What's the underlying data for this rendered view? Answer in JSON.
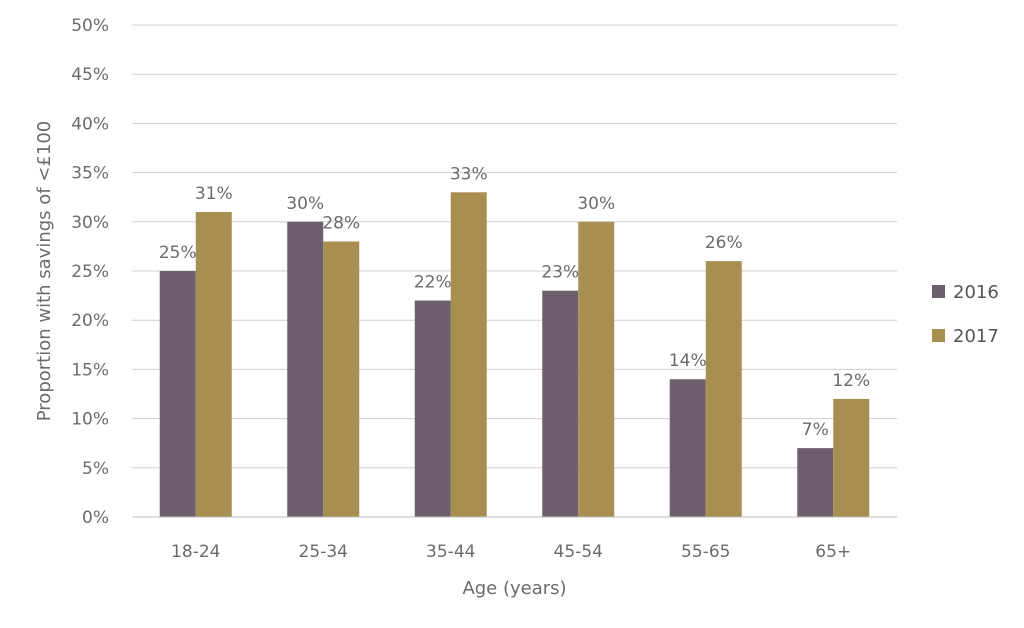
{
  "chart_data": {
    "type": "bar",
    "title": "",
    "xlabel": "Age (years)",
    "ylabel": "Proportion with savings of <£100",
    "categories": [
      "18-24",
      "25-34",
      "35-44",
      "45-54",
      "55-65",
      "65+"
    ],
    "series": [
      {
        "name": "2016",
        "color": "#6e5f6c",
        "values": [
          25,
          30,
          22,
          23,
          14,
          7
        ],
        "labels": [
          "25%",
          "30%",
          "22%",
          "23%",
          "14%",
          "7%"
        ]
      },
      {
        "name": "2017",
        "color": "#a98e52",
        "values": [
          31,
          28,
          33,
          30,
          26,
          12
        ],
        "labels": [
          "31%",
          "28%",
          "33%",
          "30%",
          "26%",
          "12%"
        ]
      }
    ],
    "ylim": [
      0,
      50
    ],
    "yticks": [
      "0%",
      "5%",
      "10%",
      "15%",
      "20%",
      "25%",
      "30%",
      "35%",
      "40%",
      "45%",
      "50%"
    ],
    "grid": true,
    "legend_position": "right"
  }
}
